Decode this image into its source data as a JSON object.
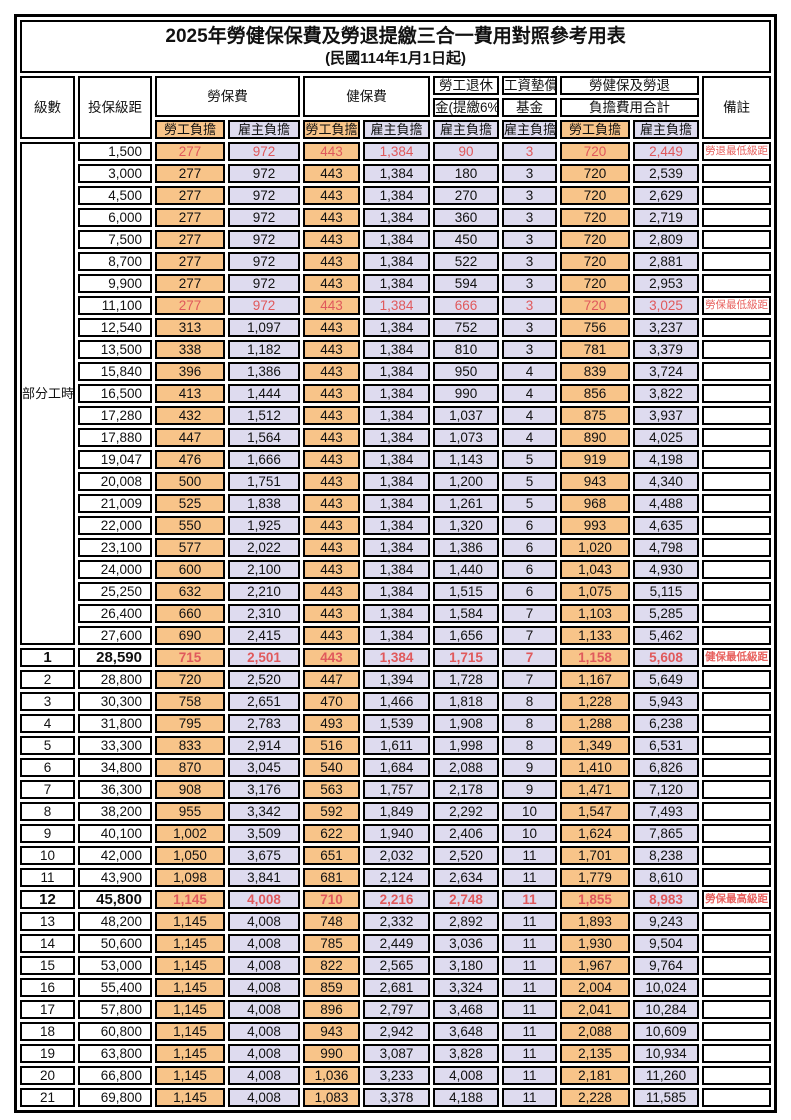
{
  "title": "2025年勞健保保費及勞退提繳三合一費用對照參考用表",
  "subtitle": "(民國114年1月1日起)",
  "header": {
    "level": "級數",
    "bracket": "投保級距",
    "labor_insurance": "勞保費",
    "health_insurance": "健保費",
    "pension_line1": "勞工退休",
    "pension_line2": "金(提繳6%)",
    "wage_fund_line1": "工資墊償",
    "wage_fund_line2": "基金",
    "total_line1": "勞健保及勞退",
    "total_line2": "負擔費用合計",
    "remark": "備註",
    "employee": "勞工負擔",
    "employer": "雇主負擔"
  },
  "colors": {
    "employee_column": "#F8C489",
    "employer_column": "#DEDBEF",
    "highlight_text": "#E0595C",
    "border": "#000000"
  },
  "table": {
    "part_time_label": "部分工時",
    "part_time_span": 23,
    "columns": [
      "level",
      "bracket",
      "labor_employee",
      "labor_employer",
      "health_employee",
      "health_employer",
      "pension_employer",
      "fund_employer",
      "total_employee",
      "total_employer",
      "remark",
      "style"
    ],
    "rows": [
      [
        "",
        "1,500",
        "277",
        "972",
        "443",
        "1,384",
        "90",
        "3",
        "720",
        "2,449",
        "勞退最低級距",
        "red"
      ],
      [
        "",
        "3,000",
        "277",
        "972",
        "443",
        "1,384",
        "180",
        "3",
        "720",
        "2,539",
        "",
        ""
      ],
      [
        "",
        "4,500",
        "277",
        "972",
        "443",
        "1,384",
        "270",
        "3",
        "720",
        "2,629",
        "",
        ""
      ],
      [
        "",
        "6,000",
        "277",
        "972",
        "443",
        "1,384",
        "360",
        "3",
        "720",
        "2,719",
        "",
        ""
      ],
      [
        "",
        "7,500",
        "277",
        "972",
        "443",
        "1,384",
        "450",
        "3",
        "720",
        "2,809",
        "",
        ""
      ],
      [
        "",
        "8,700",
        "277",
        "972",
        "443",
        "1,384",
        "522",
        "3",
        "720",
        "2,881",
        "",
        ""
      ],
      [
        "",
        "9,900",
        "277",
        "972",
        "443",
        "1,384",
        "594",
        "3",
        "720",
        "2,953",
        "",
        ""
      ],
      [
        "",
        "11,100",
        "277",
        "972",
        "443",
        "1,384",
        "666",
        "3",
        "720",
        "3,025",
        "勞保最低級距",
        "red"
      ],
      [
        "",
        "12,540",
        "313",
        "1,097",
        "443",
        "1,384",
        "752",
        "3",
        "756",
        "3,237",
        "",
        ""
      ],
      [
        "",
        "13,500",
        "338",
        "1,182",
        "443",
        "1,384",
        "810",
        "3",
        "781",
        "3,379",
        "",
        ""
      ],
      [
        "",
        "15,840",
        "396",
        "1,386",
        "443",
        "1,384",
        "950",
        "4",
        "839",
        "3,724",
        "",
        ""
      ],
      [
        "",
        "16,500",
        "413",
        "1,444",
        "443",
        "1,384",
        "990",
        "4",
        "856",
        "3,822",
        "",
        ""
      ],
      [
        "",
        "17,280",
        "432",
        "1,512",
        "443",
        "1,384",
        "1,037",
        "4",
        "875",
        "3,937",
        "",
        ""
      ],
      [
        "",
        "17,880",
        "447",
        "1,564",
        "443",
        "1,384",
        "1,073",
        "4",
        "890",
        "4,025",
        "",
        ""
      ],
      [
        "",
        "19,047",
        "476",
        "1,666",
        "443",
        "1,384",
        "1,143",
        "5",
        "919",
        "4,198",
        "",
        ""
      ],
      [
        "",
        "20,008",
        "500",
        "1,751",
        "443",
        "1,384",
        "1,200",
        "5",
        "943",
        "4,340",
        "",
        ""
      ],
      [
        "",
        "21,009",
        "525",
        "1,838",
        "443",
        "1,384",
        "1,261",
        "5",
        "968",
        "4,488",
        "",
        ""
      ],
      [
        "",
        "22,000",
        "550",
        "1,925",
        "443",
        "1,384",
        "1,320",
        "6",
        "993",
        "4,635",
        "",
        ""
      ],
      [
        "",
        "23,100",
        "577",
        "2,022",
        "443",
        "1,384",
        "1,386",
        "6",
        "1,020",
        "4,798",
        "",
        ""
      ],
      [
        "",
        "24,000",
        "600",
        "2,100",
        "443",
        "1,384",
        "1,440",
        "6",
        "1,043",
        "4,930",
        "",
        ""
      ],
      [
        "",
        "25,250",
        "632",
        "2,210",
        "443",
        "1,384",
        "1,515",
        "6",
        "1,075",
        "5,115",
        "",
        ""
      ],
      [
        "",
        "26,400",
        "660",
        "2,310",
        "443",
        "1,384",
        "1,584",
        "7",
        "1,103",
        "5,285",
        "",
        ""
      ],
      [
        "",
        "27,600",
        "690",
        "2,415",
        "443",
        "1,384",
        "1,656",
        "7",
        "1,133",
        "5,462",
        "",
        ""
      ],
      [
        "1",
        "28,590",
        "715",
        "2,501",
        "443",
        "1,384",
        "1,715",
        "7",
        "1,158",
        "5,608",
        "健保最低級距",
        "hl"
      ],
      [
        "2",
        "28,800",
        "720",
        "2,520",
        "447",
        "1,394",
        "1,728",
        "7",
        "1,167",
        "5,649",
        "",
        ""
      ],
      [
        "3",
        "30,300",
        "758",
        "2,651",
        "470",
        "1,466",
        "1,818",
        "8",
        "1,228",
        "5,943",
        "",
        ""
      ],
      [
        "4",
        "31,800",
        "795",
        "2,783",
        "493",
        "1,539",
        "1,908",
        "8",
        "1,288",
        "6,238",
        "",
        ""
      ],
      [
        "5",
        "33,300",
        "833",
        "2,914",
        "516",
        "1,611",
        "1,998",
        "8",
        "1,349",
        "6,531",
        "",
        ""
      ],
      [
        "6",
        "34,800",
        "870",
        "3,045",
        "540",
        "1,684",
        "2,088",
        "9",
        "1,410",
        "6,826",
        "",
        ""
      ],
      [
        "7",
        "36,300",
        "908",
        "3,176",
        "563",
        "1,757",
        "2,178",
        "9",
        "1,471",
        "7,120",
        "",
        ""
      ],
      [
        "8",
        "38,200",
        "955",
        "3,342",
        "592",
        "1,849",
        "2,292",
        "10",
        "1,547",
        "7,493",
        "",
        ""
      ],
      [
        "9",
        "40,100",
        "1,002",
        "3,509",
        "622",
        "1,940",
        "2,406",
        "10",
        "1,624",
        "7,865",
        "",
        ""
      ],
      [
        "10",
        "42,000",
        "1,050",
        "3,675",
        "651",
        "2,032",
        "2,520",
        "11",
        "1,701",
        "8,238",
        "",
        ""
      ],
      [
        "11",
        "43,900",
        "1,098",
        "3,841",
        "681",
        "2,124",
        "2,634",
        "11",
        "1,779",
        "8,610",
        "",
        ""
      ],
      [
        "12",
        "45,800",
        "1,145",
        "4,008",
        "710",
        "2,216",
        "2,748",
        "11",
        "1,855",
        "8,983",
        "勞保最高級距",
        "hl"
      ],
      [
        "13",
        "48,200",
        "1,145",
        "4,008",
        "748",
        "2,332",
        "2,892",
        "11",
        "1,893",
        "9,243",
        "",
        ""
      ],
      [
        "14",
        "50,600",
        "1,145",
        "4,008",
        "785",
        "2,449",
        "3,036",
        "11",
        "1,930",
        "9,504",
        "",
        ""
      ],
      [
        "15",
        "53,000",
        "1,145",
        "4,008",
        "822",
        "2,565",
        "3,180",
        "11",
        "1,967",
        "9,764",
        "",
        ""
      ],
      [
        "16",
        "55,400",
        "1,145",
        "4,008",
        "859",
        "2,681",
        "3,324",
        "11",
        "2,004",
        "10,024",
        "",
        ""
      ],
      [
        "17",
        "57,800",
        "1,145",
        "4,008",
        "896",
        "2,797",
        "3,468",
        "11",
        "2,041",
        "10,284",
        "",
        ""
      ],
      [
        "18",
        "60,800",
        "1,145",
        "4,008",
        "943",
        "2,942",
        "3,648",
        "11",
        "2,088",
        "10,609",
        "",
        ""
      ],
      [
        "19",
        "63,800",
        "1,145",
        "4,008",
        "990",
        "3,087",
        "3,828",
        "11",
        "2,135",
        "10,934",
        "",
        ""
      ],
      [
        "20",
        "66,800",
        "1,145",
        "4,008",
        "1,036",
        "3,233",
        "4,008",
        "11",
        "2,181",
        "11,260",
        "",
        ""
      ],
      [
        "21",
        "69,800",
        "1,145",
        "4,008",
        "1,083",
        "3,378",
        "4,188",
        "11",
        "2,228",
        "11,585",
        "",
        ""
      ]
    ]
  }
}
